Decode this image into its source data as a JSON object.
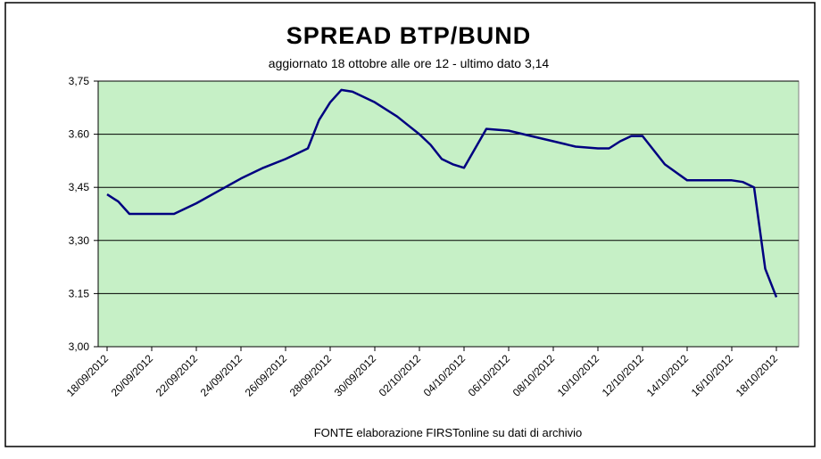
{
  "chart_data": {
    "type": "line",
    "title": "SPREAD  BTP/BUND",
    "subtitle": "aggiornato 18 ottobre alle ore 12 - ultimo dato 3,14",
    "source": "FONTE elaborazione FIRSTonline su dati di archivio",
    "xlabel": "",
    "ylabel": "",
    "ylim": [
      3.0,
      3.75
    ],
    "y_ticks": [
      3.0,
      3.15,
      3.3,
      3.45,
      3.6,
      3.75
    ],
    "y_tick_labels": [
      "3,00",
      "3.15",
      "3,30",
      "3,45",
      "3.60",
      "3,75"
    ],
    "x_tick_labels": [
      "18/09/2012",
      "20/09/2012",
      "22/09/2012",
      "24/09/2012",
      "26/09/2012",
      "28/09/2012",
      "30/09/2012",
      "02/10/2012",
      "04/10/2012",
      "06/10/2012",
      "08/10/2012",
      "10/10/2012",
      "12/10/2012",
      "14/10/2012",
      "16/10/2012",
      "18/10/2012"
    ],
    "x_tick_dates": [
      "2012-09-18",
      "2012-09-20",
      "2012-09-22",
      "2012-09-24",
      "2012-09-26",
      "2012-09-28",
      "2012-09-30",
      "2012-10-02",
      "2012-10-04",
      "2012-10-06",
      "2012-10-08",
      "2012-10-10",
      "2012-10-12",
      "2012-10-14",
      "2012-10-16",
      "2012-10-18"
    ],
    "grid": true,
    "plot_background": "#c6f0c6",
    "line_color": "#000080",
    "series": [
      {
        "x": [
          "2012-09-18",
          "2012-09-18T12:00",
          "2012-09-19",
          "2012-09-20",
          "2012-09-21",
          "2012-09-22",
          "2012-09-23",
          "2012-09-24",
          "2012-09-25",
          "2012-09-26",
          "2012-09-26T12:00",
          "2012-09-27",
          "2012-09-27T12:00",
          "2012-09-28",
          "2012-09-28T12:00",
          "2012-09-29",
          "2012-09-30",
          "2012-10-01",
          "2012-10-01T12:00",
          "2012-10-02",
          "2012-10-02T12:00",
          "2012-10-03",
          "2012-10-03T12:00",
          "2012-10-04",
          "2012-10-05",
          "2012-10-06",
          "2012-10-07",
          "2012-10-08",
          "2012-10-09",
          "2012-10-10",
          "2012-10-10T12:00",
          "2012-10-11",
          "2012-10-11T12:00",
          "2012-10-12",
          "2012-10-13",
          "2012-10-14",
          "2012-10-15",
          "2012-10-15T12:00",
          "2012-10-16",
          "2012-10-16T12:00",
          "2012-10-17",
          "2012-10-17T12:00",
          "2012-10-18"
        ],
        "y": [
          3.43,
          3.41,
          3.375,
          3.375,
          3.375,
          3.405,
          3.44,
          3.475,
          3.505,
          3.53,
          3.545,
          3.56,
          3.64,
          3.69,
          3.725,
          3.72,
          3.69,
          3.65,
          3.625,
          3.6,
          3.57,
          3.53,
          3.515,
          3.505,
          3.615,
          3.61,
          3.595,
          3.58,
          3.565,
          3.56,
          3.56,
          3.58,
          3.595,
          3.595,
          3.515,
          3.47,
          3.47,
          3.47,
          3.47,
          3.465,
          3.45,
          3.22,
          3.14
        ]
      }
    ]
  }
}
